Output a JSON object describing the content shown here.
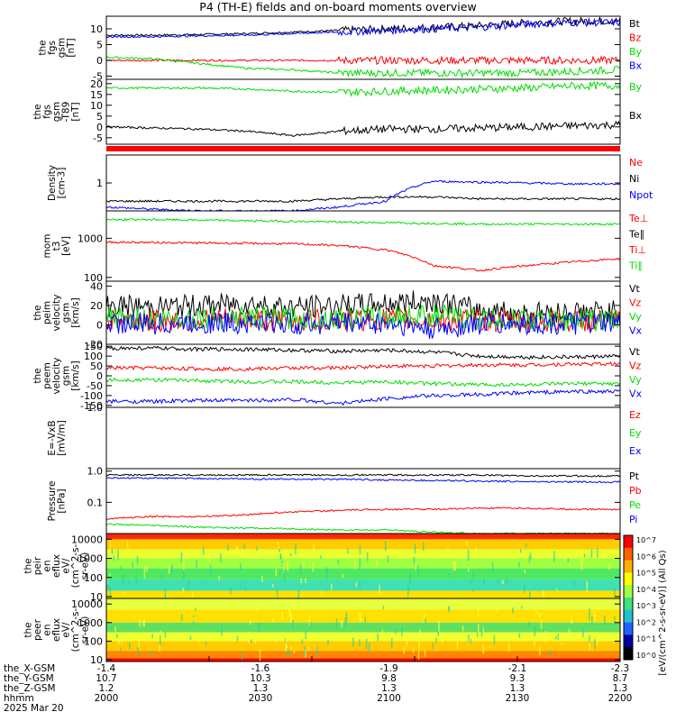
{
  "title": "P4 (TH-E) fields and on-board moments overview",
  "colors": {
    "black": "#000000",
    "red": "#ff0000",
    "green": "#00dd00",
    "blue": "#0000ff",
    "frame": "#000000"
  },
  "chart_data": [
    {
      "type": "line",
      "panel": "fgs-gsm",
      "ylabel": [
        "the",
        "fgs",
        "gsm",
        "[nT]"
      ],
      "ylim": [
        -6,
        14
      ],
      "yticks": [
        {
          "v": 10,
          "t": "10"
        },
        {
          "v": 5,
          "t": "5"
        },
        {
          "v": 0,
          "t": "0"
        },
        {
          "v": -5,
          "t": "-5"
        }
      ],
      "series": [
        {
          "name": "Bt",
          "color": "#000000",
          "values": [
            8,
            8,
            8.2,
            8.5,
            9,
            9.5,
            10,
            10.5,
            11,
            12,
            12.5,
            12.5
          ]
        },
        {
          "name": "Bz",
          "color": "#ff0000",
          "values": [
            0,
            0,
            0,
            0,
            0,
            0,
            0,
            0,
            0,
            0,
            0,
            0
          ]
        },
        {
          "name": "By",
          "color": "#00dd00",
          "values": [
            1,
            0.5,
            -1,
            -2.5,
            -3,
            -4,
            -4,
            -4,
            -4,
            -4,
            -3.5,
            -3
          ]
        },
        {
          "name": "Bx",
          "color": "#0000ff",
          "values": [
            7.5,
            7.5,
            7.8,
            8,
            8.5,
            9,
            9.5,
            10,
            10.5,
            11.5,
            12,
            12
          ]
        }
      ]
    },
    {
      "type": "line",
      "panel": "fgs-gse-delta",
      "ylabel": [
        "the",
        "fgs",
        "gsm",
        "-T89",
        "[nT]"
      ],
      "ylim": [
        -8,
        22
      ],
      "yticks": [
        {
          "v": 20,
          "t": "20"
        },
        {
          "v": 15,
          "t": "15"
        },
        {
          "v": 10,
          "t": "10"
        },
        {
          "v": 5,
          "t": "5"
        },
        {
          "v": 0,
          "t": "0"
        },
        {
          "v": -5,
          "t": "-5"
        }
      ],
      "series": [
        {
          "name": "By",
          "color": "#00dd00",
          "values": [
            18,
            18,
            18,
            17.5,
            16.5,
            16,
            16.5,
            17,
            17.5,
            18,
            19,
            19
          ]
        },
        {
          "name": "Bx",
          "color": "#000000",
          "values": [
            0,
            -0.5,
            -1,
            -2,
            -4,
            -2,
            -1,
            -1,
            -0.5,
            0,
            0.5,
            1
          ]
        }
      ]
    },
    {
      "type": "line",
      "panel": "density",
      "ylabel": [
        "Density",
        "[cm-3]"
      ],
      "ylim": [
        0.2,
        5
      ],
      "yticks": [
        {
          "v": 1,
          "t": "1"
        }
      ],
      "series": [
        {
          "name": "Ne",
          "color": "#ff0000",
          "values": []
        },
        {
          "name": "Ni",
          "color": "#000000",
          "values": [
            0.35,
            0.35,
            0.35,
            0.35,
            0.35,
            0.4,
            0.45,
            0.45,
            0.4,
            0.4,
            0.4,
            0.4
          ]
        },
        {
          "name": "Npot",
          "color": "#0000ff",
          "values": [
            0.25,
            0.22,
            0.2,
            0.2,
            0.2,
            0.25,
            0.35,
            1.1,
            1.05,
            1.0,
            0.95,
            0.95
          ]
        }
      ]
    },
    {
      "type": "line",
      "panel": "temperature",
      "ylabel": [
        "mom",
        "t3",
        "[eV]"
      ],
      "ylim": [
        80,
        5000
      ],
      "yticks": [
        {
          "v": 1000,
          "t": "1000"
        },
        {
          "v": 100,
          "t": "100"
        }
      ],
      "series": [
        {
          "name": "Te⊥",
          "color": "#ff0000",
          "values": []
        },
        {
          "name": "Te∥",
          "color": "#000000",
          "values": []
        },
        {
          "name": "Ti⊥",
          "color": "#ff0000",
          "values": [
            800,
            780,
            760,
            740,
            720,
            650,
            500,
            200,
            150,
            200,
            250,
            300
          ]
        },
        {
          "name": "Ti∥",
          "color": "#00dd00",
          "values": [
            3000,
            3000,
            2900,
            2800,
            2700,
            2600,
            2500,
            2400,
            2300,
            2300,
            2300,
            2300
          ]
        }
      ]
    },
    {
      "type": "line",
      "panel": "peim-velocity",
      "ylabel": [
        "the",
        "peim",
        "velocity",
        "gsm",
        "[km/s]"
      ],
      "ylim": [
        -20,
        45
      ],
      "yticks": [
        {
          "v": 40,
          "t": "40"
        },
        {
          "v": 20,
          "t": "20"
        },
        {
          "v": 0,
          "t": "0"
        },
        {
          "v": -20,
          "t": "-20"
        }
      ],
      "series": [
        {
          "name": "Vt",
          "color": "#000000",
          "values": [
            20,
            18,
            20,
            22,
            18,
            20,
            22,
            25,
            15,
            12,
            13,
            14
          ]
        },
        {
          "name": "Vz",
          "color": "#ff0000",
          "values": [
            5,
            4,
            5,
            6,
            4,
            5,
            6,
            5,
            4,
            3,
            4,
            4
          ]
        },
        {
          "name": "Vy",
          "color": "#00dd00",
          "values": [
            8,
            6,
            7,
            8,
            6,
            7,
            8,
            10,
            6,
            5,
            5,
            5
          ]
        },
        {
          "name": "Vx",
          "color": "#0000ff",
          "values": [
            2,
            1,
            2,
            2,
            1,
            2,
            2,
            -5,
            1,
            1,
            1,
            1
          ]
        }
      ]
    },
    {
      "type": "line",
      "panel": "peem-velocity",
      "ylabel": [
        "the",
        "peem",
        "velocity",
        "gsm",
        "[km/s]"
      ],
      "ylim": [
        -160,
        160
      ],
      "yticks": [
        {
          "v": 150,
          "t": "150"
        },
        {
          "v": 100,
          "t": "100"
        },
        {
          "v": 50,
          "t": "50"
        },
        {
          "v": 0,
          "t": "0"
        },
        {
          "v": -50,
          "t": "-50"
        },
        {
          "v": -100,
          "t": "-100"
        },
        {
          "v": -150,
          "t": "-150"
        }
      ],
      "series": [
        {
          "name": "Vt",
          "color": "#000000",
          "values": [
            140,
            140,
            135,
            135,
            130,
            125,
            130,
            120,
            100,
            95,
            95,
            100
          ]
        },
        {
          "name": "Vz",
          "color": "#ff0000",
          "values": [
            40,
            40,
            35,
            35,
            40,
            40,
            50,
            50,
            55,
            55,
            60,
            60
          ]
        },
        {
          "name": "Vy",
          "color": "#00dd00",
          "values": [
            -20,
            -20,
            -25,
            -30,
            -30,
            -35,
            -30,
            -40,
            -45,
            -45,
            -40,
            -40
          ]
        },
        {
          "name": "Vx",
          "color": "#0000ff",
          "values": [
            -130,
            -130,
            -125,
            -125,
            -120,
            -140,
            -115,
            -100,
            -95,
            -85,
            -80,
            -80
          ]
        }
      ]
    },
    {
      "type": "line",
      "panel": "efield",
      "ylabel": [
        "E=-VxB",
        "[mV/m]"
      ],
      "ylim": [
        0,
        1
      ],
      "yticks": [
        {
          "v": 1,
          "t": "1.0"
        }
      ],
      "series": [
        {
          "name": "Ez",
          "color": "#ff0000",
          "values": []
        },
        {
          "name": "Ey",
          "color": "#00dd00",
          "values": []
        },
        {
          "name": "Ex",
          "color": "#0000ff",
          "values": []
        }
      ]
    },
    {
      "type": "line",
      "panel": "pressure",
      "ylabel": [
        "Pressure",
        "[nPa]"
      ],
      "ylim": [
        0.01,
        1.2
      ],
      "yticks": [
        {
          "v": 1,
          "t": "1.0"
        },
        {
          "v": 0.1,
          "t": "0.1"
        }
      ],
      "series": [
        {
          "name": "Pt",
          "color": "#000000",
          "values": [
            0.75,
            0.75,
            0.75,
            0.75,
            0.75,
            0.75,
            0.75,
            0.75,
            0.75,
            0.7,
            0.7,
            0.7
          ]
        },
        {
          "name": "Pb",
          "color": "#ff0000",
          "values": [
            0.03,
            0.035,
            0.035,
            0.04,
            0.05,
            0.055,
            0.06,
            0.06,
            0.065,
            0.065,
            0.06,
            0.06
          ]
        },
        {
          "name": "Pe",
          "color": "#00dd00",
          "values": [
            0.02,
            0.018,
            0.016,
            0.015,
            0.014,
            0.013,
            0.013,
            0.011,
            0.01,
            0.01,
            0.01,
            0.01
          ]
        },
        {
          "name": "Pi",
          "color": "#0000ff",
          "values": [
            0.6,
            0.6,
            0.58,
            0.56,
            0.55,
            0.55,
            0.52,
            0.5,
            0.48,
            0.46,
            0.45,
            0.45
          ]
        }
      ]
    },
    {
      "type": "heatmap",
      "panel": "peir-eflux",
      "ylabel": [
        "the",
        "peir",
        "en",
        "eflux",
        "eV/",
        "(cm^2-s-",
        "sr-eV)"
      ],
      "ylim": [
        8,
        20000
      ],
      "yticks": [
        {
          "v": 10000,
          "t": "10000"
        },
        {
          "v": 1000,
          "t": "1000"
        },
        {
          "v": 100,
          "t": "100"
        },
        {
          "v": 10,
          "t": "10"
        }
      ],
      "bands": [
        {
          "e": [
            10000,
            20000
          ],
          "color": "#ff2a00"
        },
        {
          "e": [
            3000,
            10000
          ],
          "color": "#ffcc00"
        },
        {
          "e": [
            1000,
            3000
          ],
          "color": "#e8ff30"
        },
        {
          "e": [
            300,
            1000
          ],
          "color": "#a0ff40"
        },
        {
          "e": [
            80,
            300
          ],
          "color": "#50e860"
        },
        {
          "e": [
            20,
            80
          ],
          "color": "#40e0b0"
        },
        {
          "e": [
            8,
            20
          ],
          "color": "#ffe000"
        }
      ]
    },
    {
      "type": "heatmap",
      "panel": "peer-eflux",
      "ylabel": [
        "the",
        "peer",
        "en",
        "eflux",
        "eV/",
        "(cm^2-s-",
        "sr-eV)"
      ],
      "ylim": [
        8,
        20000
      ],
      "yticks": [
        {
          "v": 10000,
          "t": "10000"
        },
        {
          "v": 1000,
          "t": "1000"
        },
        {
          "v": 100,
          "t": "100"
        },
        {
          "v": 10,
          "t": "10"
        }
      ],
      "bands": [
        {
          "e": [
            5000,
            20000
          ],
          "color": "#e8ff40"
        },
        {
          "e": [
            1000,
            5000
          ],
          "color": "#ffe000"
        },
        {
          "e": [
            300,
            1000
          ],
          "color": "#60e060"
        },
        {
          "e": [
            100,
            300
          ],
          "color": "#f0ff30"
        },
        {
          "e": [
            30,
            100
          ],
          "color": "#ffcc00"
        },
        {
          "e": [
            12,
            30
          ],
          "color": "#ff8800"
        },
        {
          "e": [
            8,
            12
          ],
          "color": "#ff0000"
        }
      ]
    }
  ],
  "colorbar": {
    "labels": [
      "10^7",
      "10^6",
      "10^5",
      "10^4",
      "10^3",
      "10^2",
      "10^1",
      "10^0"
    ],
    "unit": "[eV/(cm^2-s-sr-eV)] (All Qs)"
  },
  "xaxis": {
    "tick_positions": [
      0.0,
      0.2,
      0.4,
      0.6,
      0.8,
      1.0
    ],
    "rows": [
      {
        "label": "the_X-GSM",
        "values": [
          "-1.4",
          "-1.6",
          "-1.9",
          "-2.1",
          "-2.3"
        ]
      },
      {
        "label": "the_Y-GSM",
        "values": [
          "10.7",
          "10.3",
          "9.8",
          "9.3",
          "8.7"
        ]
      },
      {
        "label": "the_Z-GSM",
        "values": [
          "1.2",
          "1.3",
          "1.3",
          "1.3",
          "1.3"
        ]
      },
      {
        "label": "hhmm",
        "values": [
          "2000",
          "2030",
          "2100",
          "2130",
          "2200"
        ]
      }
    ],
    "date": "2025 Mar 20"
  }
}
